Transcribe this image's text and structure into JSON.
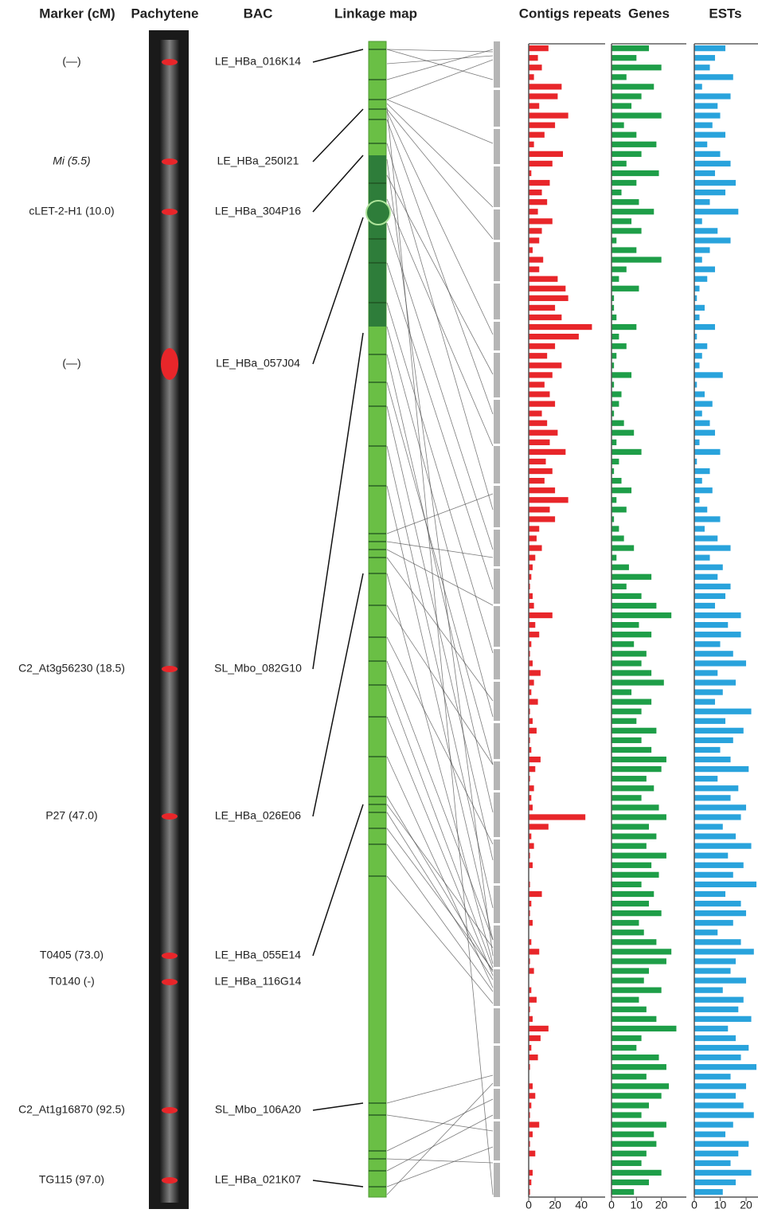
{
  "headers": {
    "marker": "Marker (cM)",
    "pachytene": "Pachytene",
    "bac": "BAC",
    "linkage": "Linkage map"
  },
  "markers": [
    "(—)",
    "Mi (5.5)",
    "cLET-2-H1 (10.0)",
    "(—)",
    "C2_At3g56230 (18.5)",
    "P27 (47.0)",
    "T0405 (73.0)",
    "T0140 (-)",
    "C2_At1g16870 (92.5)",
    "TG115 (97.0)"
  ],
  "bacs": [
    "LE_HBa_016K14",
    "LE_HBa_250I21",
    "LE_HBa_304P16",
    "LE_HBa_057J04",
    "SL_Mbo_082G10",
    "LE_HBa_026E06",
    "LE_HBa_055E14",
    "LE_HBa_116G14",
    "SL_Mbo_106A20",
    "LE_HBa_021K07"
  ],
  "chart_data": [
    {
      "type": "bar",
      "orientation": "horizontal",
      "title": "Contigs repeats",
      "color": "#e8262a",
      "xlim": [
        0,
        58
      ],
      "xticks": [
        0,
        20,
        40
      ],
      "values": [
        15,
        7,
        10,
        4,
        25,
        22,
        8,
        30,
        20,
        12,
        4,
        26,
        18,
        2,
        16,
        10,
        14,
        7,
        18,
        10,
        8,
        3,
        11,
        8,
        22,
        28,
        30,
        20,
        25,
        48,
        38,
        20,
        14,
        25,
        18,
        12,
        16,
        20,
        10,
        14,
        22,
        16,
        28,
        13,
        18,
        12,
        20,
        30,
        16,
        20,
        8,
        6,
        10,
        5,
        3,
        2,
        1,
        3,
        4,
        18,
        5,
        8,
        2,
        1,
        3,
        9,
        4,
        2,
        7,
        1,
        3,
        6,
        1,
        2,
        9,
        5,
        1,
        4,
        2,
        3,
        43,
        15,
        2,
        4,
        1,
        3,
        0,
        1,
        10,
        2,
        1,
        3,
        0,
        2,
        8,
        1,
        4,
        0,
        2,
        6,
        1,
        3,
        15,
        9,
        2,
        7,
        1,
        0,
        3,
        5,
        2,
        1,
        8,
        3,
        1,
        5,
        0,
        3,
        2,
        1
      ]
    },
    {
      "type": "bar",
      "orientation": "horizontal",
      "title": "Genes",
      "color": "#1e9e48",
      "xlim": [
        0,
        30
      ],
      "xticks": [
        0,
        10,
        20
      ],
      "values": [
        15,
        10,
        20,
        6,
        17,
        12,
        8,
        20,
        5,
        10,
        18,
        12,
        6,
        19,
        10,
        4,
        11,
        17,
        8,
        12,
        2,
        10,
        20,
        6,
        3,
        11,
        1,
        1,
        2,
        10,
        3,
        6,
        2,
        1,
        8,
        1,
        4,
        3,
        1,
        5,
        9,
        2,
        12,
        3,
        1,
        4,
        8,
        2,
        6,
        1,
        3,
        5,
        9,
        2,
        7,
        16,
        6,
        12,
        18,
        24,
        11,
        16,
        9,
        14,
        12,
        16,
        21,
        8,
        16,
        12,
        10,
        18,
        12,
        16,
        22,
        20,
        14,
        17,
        12,
        19,
        22,
        15,
        18,
        14,
        22,
        16,
        19,
        12,
        17,
        15,
        20,
        11,
        13,
        18,
        24,
        22,
        15,
        13,
        20,
        11,
        14,
        18,
        26,
        12,
        10,
        19,
        22,
        14,
        23,
        20,
        15,
        12,
        22,
        17,
        18,
        14,
        12,
        20,
        15,
        9
      ]
    },
    {
      "type": "bar",
      "orientation": "horizontal",
      "title": "ESTs",
      "color": "#29a3dc",
      "xlim": [
        0,
        24.6
      ],
      "xticks": [
        0,
        10,
        20
      ],
      "values": [
        12,
        8,
        6,
        15,
        3,
        14,
        9,
        10,
        7,
        12,
        5,
        10,
        14,
        8,
        16,
        12,
        6,
        17,
        3,
        9,
        14,
        6,
        3,
        8,
        5,
        2,
        1,
        4,
        2,
        8,
        1,
        5,
        3,
        2,
        11,
        1,
        4,
        7,
        3,
        6,
        8,
        2,
        10,
        1,
        6,
        3,
        7,
        2,
        5,
        10,
        4,
        9,
        14,
        6,
        11,
        9,
        14,
        12,
        8,
        18,
        13,
        18,
        10,
        15,
        20,
        9,
        16,
        11,
        8,
        22,
        12,
        19,
        15,
        10,
        14,
        21,
        9,
        17,
        14,
        20,
        18,
        11,
        16,
        22,
        13,
        19,
        15,
        24,
        12,
        18,
        20,
        15,
        9,
        18,
        23,
        16,
        14,
        20,
        11,
        19,
        17,
        22,
        13,
        16,
        21,
        18,
        24,
        14,
        20,
        16,
        19,
        23,
        15,
        12,
        21,
        17,
        14,
        22,
        16,
        11
      ]
    }
  ]
}
